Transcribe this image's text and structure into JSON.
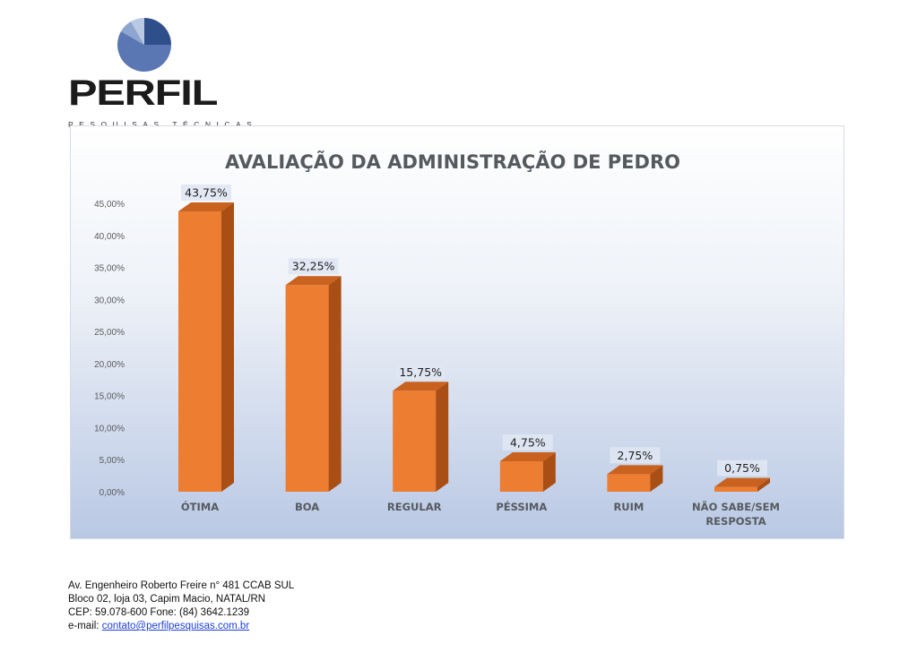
{
  "logo": {
    "name": "PERFIL",
    "tagline": "PESQUISAS TÉCNICAS"
  },
  "chart_data": {
    "type": "bar",
    "title": "AVALIAÇÃO DA ADMINISTRAÇÃO DE PEDRO",
    "categories": [
      "ÓTIMA",
      "BOA",
      "REGULAR",
      "PÉSSIMA",
      "RUIM",
      "NÃO SABE/SEM RESPOSTA"
    ],
    "category_lines": [
      [
        "ÓTIMA"
      ],
      [
        "BOA"
      ],
      [
        "REGULAR"
      ],
      [
        "PÉSSIMA"
      ],
      [
        "RUIM"
      ],
      [
        "NÃO SABE/SEM",
        "RESPOSTA"
      ]
    ],
    "values": [
      43.75,
      32.25,
      15.75,
      4.75,
      2.75,
      0.75
    ],
    "data_labels": [
      "43,75%",
      "32,25%",
      "15,75%",
      "4,75%",
      "2,75%",
      "0,75%"
    ],
    "ylim": [
      0,
      45
    ],
    "yticks": [
      "0,00%",
      "5,00%",
      "10,00%",
      "15,00%",
      "20,00%",
      "25,00%",
      "30,00%",
      "35,00%",
      "40,00%",
      "45,00%"
    ],
    "ytick_values": [
      0,
      5,
      10,
      15,
      20,
      25,
      30,
      35,
      40,
      45
    ],
    "bar_color": "#ed7d31",
    "bar_side_color": "#a94e14",
    "bar_top_color": "#c9611f",
    "grid": false,
    "legend": "none"
  },
  "footer": {
    "line1": "Av. Engenheiro Roberto Freire n° 481 CCAB SUL",
    "line2": "Bloco 02, loja 03, Capim Macio, NATAL/RN",
    "line3": "CEP: 59.078-600 Fone: (84) 3642.1239",
    "email_label": "e-mail: ",
    "email": "contato@perfilpesquisas.com.br"
  }
}
